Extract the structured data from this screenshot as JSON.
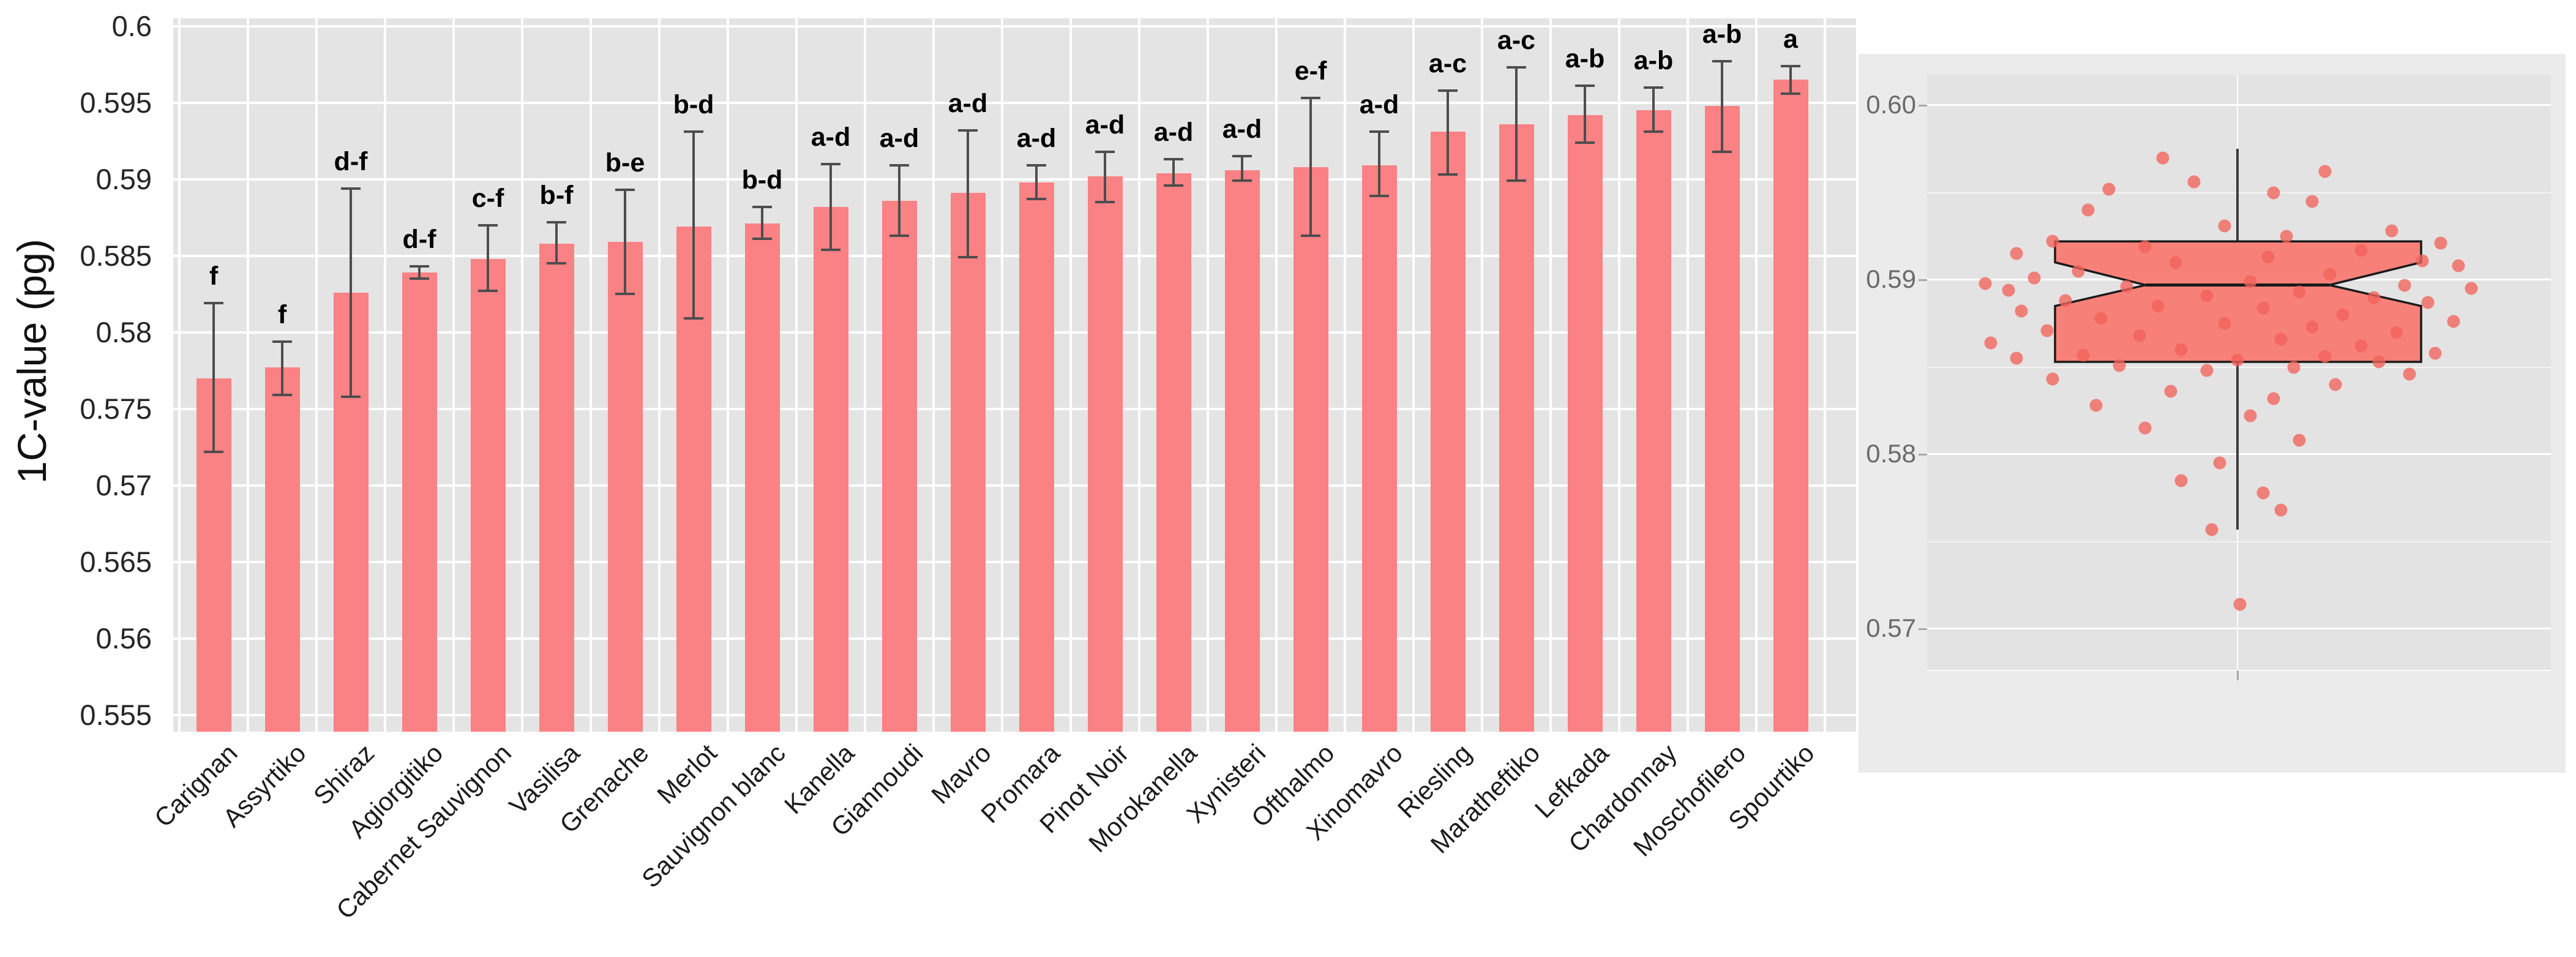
{
  "figure": {
    "background": "#ffffff"
  },
  "chart_data": [
    {
      "type": "bar",
      "title": "",
      "xlabel": "",
      "ylabel": "1C-value (pg)",
      "legend": "none",
      "grid": "white horizontal major gridlines + white vertical category separators on gray panel",
      "plot_bg": "#E4E4E4",
      "grid_color": "#FFFFFF",
      "bar_color": "#FA8184",
      "error_color": "#4D4D4D",
      "sig_color": "#000000",
      "ylim": [
        0.5539,
        0.6005
      ],
      "ytick_values": [
        0.6,
        0.595,
        0.59,
        0.585,
        0.58,
        0.575,
        0.57,
        0.565,
        0.56,
        0.555
      ],
      "ytick_labels": [
        "0.6",
        "0.595",
        "0.59",
        "0.585",
        "0.58",
        "0.575",
        "0.57",
        "0.565",
        "0.56",
        "0.555"
      ],
      "categories": [
        "Carignan",
        "Assyrtiko",
        "Shiraz",
        "Agiorgitiko",
        "Cabernet Sauvignon",
        "Vasilisa",
        "Grenache",
        "Merlot",
        "Sauvignon blanc",
        "Kanella",
        "Giannoudi",
        "Mavro",
        "Promara",
        "Pinot Noir",
        "Morokanella",
        "Xynisteri",
        "Ofthalmo",
        "Xinomavro",
        "Riesling",
        "Maratheftiko",
        "Lefkada",
        "Chardonnay",
        "Moschofilero",
        "Spourtiko"
      ],
      "values": [
        0.577,
        0.5777,
        0.5826,
        0.5839,
        0.5848,
        0.5858,
        0.5859,
        0.5869,
        0.5871,
        0.5882,
        0.5886,
        0.5891,
        0.5898,
        0.5902,
        0.5904,
        0.5906,
        0.5908,
        0.5909,
        0.5931,
        0.5936,
        0.5942,
        0.5945,
        0.5948,
        0.5965
      ],
      "error_low": [
        0.5722,
        0.5759,
        0.5758,
        0.5835,
        0.5827,
        0.5845,
        0.5825,
        0.5809,
        0.5861,
        0.5854,
        0.5863,
        0.5849,
        0.5887,
        0.5885,
        0.5896,
        0.5899,
        0.5863,
        0.5889,
        0.5903,
        0.5899,
        0.5924,
        0.5931,
        0.5918,
        0.5956
      ],
      "error_high": [
        0.5819,
        0.5794,
        0.5894,
        0.5843,
        0.587,
        0.5872,
        0.5893,
        0.5931,
        0.5882,
        0.591,
        0.5909,
        0.5932,
        0.5909,
        0.5918,
        0.5913,
        0.5915,
        0.5953,
        0.5931,
        0.5958,
        0.5973,
        0.5961,
        0.596,
        0.5977,
        0.5974
      ],
      "sig_letters": [
        "f",
        "f",
        "d-f",
        "d-f",
        "c-f",
        "b-f",
        "b-e",
        "b-d",
        "b-d",
        "a-d",
        "a-d",
        "a-d",
        "a-d",
        "a-d",
        "a-d",
        "a-d",
        "e-f",
        "a-d",
        "a-c",
        "a-c",
        "a-b",
        "a-b",
        "a-b",
        "a"
      ]
    },
    {
      "type": "boxplot",
      "orientation": "vertical",
      "notched": true,
      "legend": "none",
      "grid": "white horizontal major+minor gridlines and center vertical gridline on gray panel",
      "fig_bg": "#EBEBEB",
      "plot_bg": "#E3E3E3",
      "box_color": "#F8766D",
      "box_stroke": "#1a1a1a",
      "point_color": "#F2635B",
      "whisker_color": "#3a3a3a",
      "ylim": [
        0.5678,
        0.6018
      ],
      "ytick_values": [
        0.6,
        0.59,
        0.58,
        0.57
      ],
      "ytick_labels": [
        "0.60",
        "0.59",
        "0.58",
        "0.57"
      ],
      "minor_tick_values": [
        0.595,
        0.585,
        0.575
      ],
      "stats": {
        "whisker_high": 0.5975,
        "q3": 0.5922,
        "median": 0.5897,
        "q1": 0.5853,
        "whisker_low": 0.5757,
        "notch_high": 0.591,
        "notch_low": 0.5885,
        "outliers": [
          0.5714
        ]
      },
      "points": [
        [
          -0.29,
          0.597
        ],
        [
          0.34,
          0.5962
        ],
        [
          -0.17,
          0.5956
        ],
        [
          -0.5,
          0.5952
        ],
        [
          0.14,
          0.595
        ],
        [
          0.29,
          0.5945
        ],
        [
          -0.58,
          0.594
        ],
        [
          -0.05,
          0.5931
        ],
        [
          0.6,
          0.5928
        ],
        [
          0.19,
          0.5925
        ],
        [
          -0.72,
          0.5922
        ],
        [
          0.79,
          0.5921
        ],
        [
          -0.36,
          0.5919
        ],
        [
          0.48,
          0.5917
        ],
        [
          -0.86,
          0.5915
        ],
        [
          0.12,
          0.5913
        ],
        [
          0.72,
          0.5911
        ],
        [
          -0.24,
          0.591
        ],
        [
          0.86,
          0.5908
        ],
        [
          -0.62,
          0.5905
        ],
        [
          0.36,
          0.5903
        ],
        [
          -0.79,
          0.5901
        ],
        [
          0.05,
          0.5899
        ],
        [
          -0.98,
          0.5898
        ],
        [
          0.65,
          0.5897
        ],
        [
          -0.43,
          0.5896
        ],
        [
          0.91,
          0.5895
        ],
        [
          -0.89,
          0.5894
        ],
        [
          0.24,
          0.5893
        ],
        [
          -0.12,
          0.5891
        ],
        [
          0.53,
          0.589
        ],
        [
          -0.67,
          0.5888
        ],
        [
          0.74,
          0.5887
        ],
        [
          -0.31,
          0.5885
        ],
        [
          0.1,
          0.5884
        ],
        [
          -0.84,
          0.5882
        ],
        [
          0.41,
          0.588
        ],
        [
          -0.53,
          0.5878
        ],
        [
          0.84,
          0.5876
        ],
        [
          -0.05,
          0.5875
        ],
        [
          0.29,
          0.5873
        ],
        [
          -0.74,
          0.5871
        ],
        [
          0.62,
          0.587
        ],
        [
          -0.38,
          0.5868
        ],
        [
          0.17,
          0.5866
        ],
        [
          -0.96,
          0.5864
        ],
        [
          0.48,
          0.5862
        ],
        [
          -0.22,
          0.586
        ],
        [
          0.77,
          0.5858
        ],
        [
          -0.6,
          0.5857
        ],
        [
          0.34,
          0.5856
        ],
        [
          -0.86,
          0.5855
        ],
        [
          0.0,
          0.5854
        ],
        [
          0.55,
          0.5853
        ],
        [
          -0.46,
          0.5851
        ],
        [
          0.22,
          0.585
        ],
        [
          -0.12,
          0.5848
        ],
        [
          0.67,
          0.5846
        ],
        [
          -0.72,
          0.5843
        ],
        [
          0.38,
          0.584
        ],
        [
          -0.26,
          0.5836
        ],
        [
          0.14,
          0.5832
        ],
        [
          -0.55,
          0.5828
        ],
        [
          0.05,
          0.5822
        ],
        [
          -0.36,
          0.5815
        ],
        [
          0.24,
          0.5808
        ],
        [
          -0.07,
          0.5795
        ],
        [
          -0.22,
          0.5785
        ],
        [
          0.1,
          0.5778
        ],
        [
          0.17,
          0.5768
        ],
        [
          -0.1,
          0.5757
        ],
        [
          0.01,
          0.5714
        ]
      ]
    }
  ]
}
